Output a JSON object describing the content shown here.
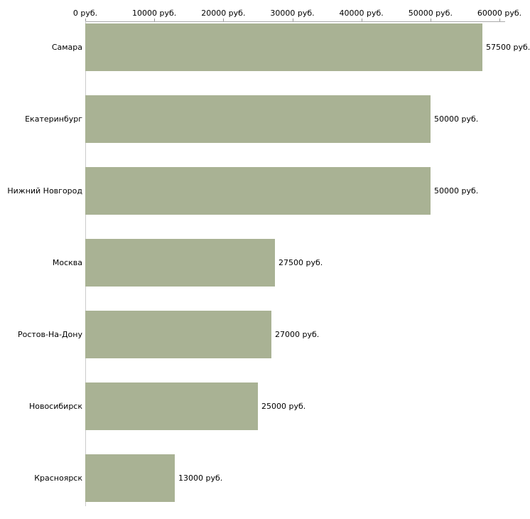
{
  "chart_data": {
    "type": "bar",
    "orientation": "horizontal",
    "title": "",
    "xlabel": "",
    "ylabel": "",
    "categories": [
      "Самара",
      "Екатеринбург",
      "Нижний Новгород",
      "Москва",
      "Ростов-На-Дону",
      "Новосибирск",
      "Красноярск"
    ],
    "values": [
      57500,
      50000,
      50000,
      27500,
      27000,
      25000,
      13000
    ],
    "value_labels": [
      "57500 руб.",
      "50000 руб.",
      "50000 руб.",
      "27500 руб.",
      "27000 руб.",
      "25000 руб.",
      "13000 руб."
    ],
    "xlim": [
      0,
      60000
    ],
    "x_ticks": [
      0,
      10000,
      20000,
      30000,
      40000,
      50000,
      60000
    ],
    "x_tick_labels": [
      "0 руб.",
      "10000 руб.",
      "20000 руб.",
      "30000 руб.",
      "40000 руб.",
      "50000 руб.",
      "60000 руб."
    ],
    "bar_color": "#a9b294",
    "grid": false,
    "legend": "none",
    "axis_position": "top"
  }
}
